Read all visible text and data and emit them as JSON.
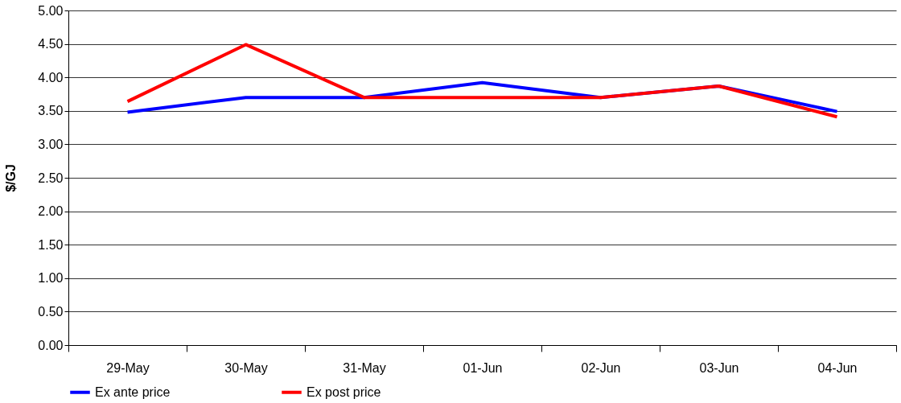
{
  "chart_data": {
    "type": "line",
    "ylabel": "$/GJ",
    "categories": [
      "29-May",
      "30-May",
      "31-May",
      "01-Jun",
      "02-Jun",
      "03-Jun",
      "04-Jun"
    ],
    "series": [
      {
        "name": "Ex ante price",
        "color": "#0000ff",
        "values": [
          3.48,
          3.7,
          3.7,
          3.92,
          3.7,
          3.87,
          3.49
        ]
      },
      {
        "name": "Ex post price",
        "color": "#ff0000",
        "values": [
          3.64,
          4.49,
          3.7,
          3.7,
          3.7,
          3.87,
          3.41
        ]
      }
    ],
    "ylim": [
      0,
      5
    ],
    "yticks": [
      {
        "value": 0,
        "label": "0.00"
      },
      {
        "value": 0.5,
        "label": "0.50"
      },
      {
        "value": 1,
        "label": "1.00"
      },
      {
        "value": 1.5,
        "label": "1.50"
      },
      {
        "value": 2,
        "label": "2.00"
      },
      {
        "value": 2.5,
        "label": "2.50"
      },
      {
        "value": 3,
        "label": "3.00"
      },
      {
        "value": 3.5,
        "label": "3.50"
      },
      {
        "value": 4,
        "label": "4.00"
      },
      {
        "value": 4.5,
        "label": "4.50"
      },
      {
        "value": 5,
        "label": "5.00"
      }
    ],
    "grid": "y",
    "legend": "bottom",
    "marker": "none",
    "line_style": "solid"
  }
}
